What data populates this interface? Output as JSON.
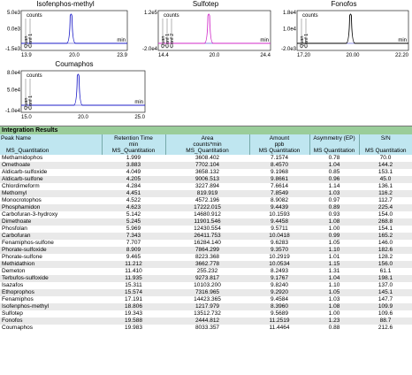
{
  "colors": {
    "header_bg": "#9acd9a",
    "col_header_bg": "#bfe6f0",
    "trace_blue": "#1c1cc8",
    "trace_magenta": "#d028c8",
    "trace_black": "#000000"
  },
  "chromatograms": [
    {
      "title": "Isofenphos-methyl",
      "y_max": "5.0e3",
      "y_mid": "0.0e3",
      "y_min": "-1.5e3",
      "x_ticks": [
        "13.9",
        "20.0",
        "23.9"
      ],
      "legend": [
        "counts",
        "Quan",
        "Conf 1"
      ],
      "x_unit": "min",
      "peak_color": "trace_blue"
    },
    {
      "title": "Sulfotep",
      "y_max": "1.2e5",
      "y_mid": "",
      "y_min": "-2.0e4",
      "x_ticks": [
        "14.4",
        "20.0",
        "24.4"
      ],
      "legend": [
        "counts",
        "Quan",
        "Conf 1",
        "Conf 2"
      ],
      "x_unit": "min",
      "peak_color": "trace_magenta"
    },
    {
      "title": "Fonofos",
      "y_max": "1.8e4",
      "y_mid": "1.0e4",
      "y_min": "-2.0e3",
      "x_ticks": [
        "17.20",
        "20.00",
        "22.20"
      ],
      "legend": [
        "counts",
        "Quan",
        "Conf 1"
      ],
      "x_unit": "min",
      "peak_color": "trace_black"
    },
    {
      "title": "Coumaphos",
      "y_max": "8.0e4",
      "y_mid": "5.0e4",
      "y_min": "-1.0e4",
      "x_ticks": [
        "15.0",
        "20.0",
        "25.0"
      ],
      "legend": [
        "counts",
        "Quan",
        "Conf 1"
      ],
      "x_unit": "min",
      "peak_color": "trace_blue"
    }
  ],
  "results": {
    "section_title": "Integration Results",
    "columns": [
      {
        "h1": "Peak Name",
        "h2": "",
        "h3": "MS_Quantitation"
      },
      {
        "h1": "Retention Time",
        "h2": "min",
        "h3": "MS_Quantitation"
      },
      {
        "h1": "Area",
        "h2": "counts*min",
        "h3": "MS_Quantitation"
      },
      {
        "h1": "Amount",
        "h2": "ppb",
        "h3": "MS Quantitation"
      },
      {
        "h1": "Asymmetry (EP)",
        "h2": "",
        "h3": "MS Quantitation"
      },
      {
        "h1": "S/N",
        "h2": "",
        "h3": "MS Quantitation"
      }
    ],
    "rows": [
      [
        "Methamidophos",
        "1.999",
        "3608.402",
        "7.1574",
        "0.78",
        "70.0"
      ],
      [
        "Omethoate",
        "3.883",
        "7702.104",
        "8.4570",
        "1.04",
        "144.2"
      ],
      [
        "Aldicarb-sulfoxide",
        "4.049",
        "3658.132",
        "9.1968",
        "0.85",
        "153.1"
      ],
      [
        "Aldicarb-sulfone",
        "4.205",
        "9006.513",
        "9.8661",
        "0.96",
        "45.0"
      ],
      [
        "Chlordimeform",
        "4.284",
        "3227.894",
        "7.6614",
        "1.14",
        "136.1"
      ],
      [
        "Methomyl",
        "4.451",
        "819.919",
        "7.8549",
        "1.03",
        "116.2"
      ],
      [
        "Monocrotophos",
        "4.522",
        "4572.196",
        "8.9082",
        "0.97",
        "112.7"
      ],
      [
        "Phosphamidon",
        "4.623",
        "17222.015",
        "9.4439",
        "0.89",
        "225.4"
      ],
      [
        "Carbofuran-3-hydroxy",
        "5.142",
        "14680.912",
        "10.1593",
        "0.93",
        "154.0"
      ],
      [
        "Dimethoate",
        "5.245",
        "11901.546",
        "9.4458",
        "1.08",
        "268.8"
      ],
      [
        "Phosfolan",
        "5.969",
        "12430.554",
        "9.5711",
        "1.00",
        "154.1"
      ],
      [
        "Carbofuran",
        "7.343",
        "26411.753",
        "10.0418",
        "0.99",
        "165.2"
      ],
      [
        "Fenamiphos-sulfone",
        "7.707",
        "16284.140",
        "9.6283",
        "1.05",
        "146.0"
      ],
      [
        "Phorate-sulfoxide",
        "8.909",
        "7864.299",
        "9.3570",
        "1.10",
        "182.6"
      ],
      [
        "Phorate-sulfone",
        "9.465",
        "8223.368",
        "10.2919",
        "1.01",
        "128.2"
      ],
      [
        "Methidathion",
        "11.212",
        "3662.778",
        "10.0534",
        "1.15",
        "156.0"
      ],
      [
        "Demeton",
        "11.410",
        "255.232",
        "8.2493",
        "1.31",
        "61.1"
      ],
      [
        "Terbufos-sulfoxide",
        "11.935",
        "9273.817",
        "9.1767",
        "1.04",
        "198.1"
      ],
      [
        "Isazafos",
        "15.311",
        "10103.200",
        "9.8240",
        "1.10",
        "137.0"
      ],
      [
        "Ethoprophos",
        "15.574",
        "7316.965",
        "9.2920",
        "1.05",
        "145.1"
      ],
      [
        "Fenamiphos",
        "17.191",
        "14423.365",
        "9.4584",
        "1.03",
        "147.7"
      ],
      [
        "Isofenphos-methyl",
        "18.806",
        "1217.979",
        "8.3960",
        "1.08",
        "109.9"
      ],
      [
        "Sulfotep",
        "19.343",
        "13512.732",
        "9.5689",
        "1.00",
        "109.6"
      ],
      [
        "Fonofos",
        "19.588",
        "2444.812",
        "11.2519",
        "1.23",
        "88.7"
      ],
      [
        "Coumaphos",
        "19.983",
        "8033.357",
        "11.4464",
        "0.88",
        "212.6"
      ]
    ]
  }
}
